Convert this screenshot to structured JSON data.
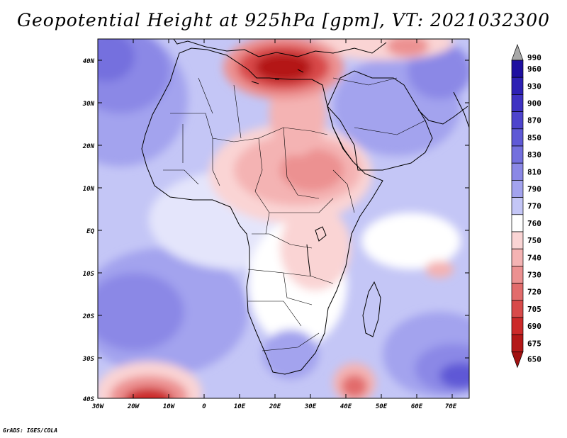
{
  "title": "Geopotential Height at 925hPa [gpm], VT: 2021032300",
  "credit": "GrADS: IGES/COLA",
  "chart_data": {
    "type": "heatmap",
    "variable": "Geopotential Height",
    "level": "925hPa",
    "units": "gpm",
    "valid_time": "2021032300",
    "lon_range": [
      -30,
      75
    ],
    "lat_range": [
      -40,
      45
    ],
    "x_ticks": [
      "30W",
      "20W",
      "10W",
      "0",
      "10E",
      "20E",
      "30E",
      "40E",
      "50E",
      "60E",
      "70E"
    ],
    "y_ticks": [
      "40N",
      "30N",
      "20N",
      "10N",
      "EQ",
      "10S",
      "20S",
      "30S",
      "40S"
    ],
    "colorbar": {
      "levels": [
        "990",
        "960",
        "930",
        "900",
        "870",
        "850",
        "830",
        "810",
        "790",
        "770",
        "760",
        "750",
        "740",
        "730",
        "720",
        "705",
        "690",
        "675",
        "650"
      ],
      "colors": [
        "#a8a8a8",
        "#1e0fa0",
        "#2e21b4",
        "#3f32c2",
        "#4e44cd",
        "#5f59d6",
        "#7470de",
        "#8b88e6",
        "#a3a3ee",
        "#c4c6f6",
        "#ffffff",
        "#fad4d4",
        "#f4b3b3",
        "#ec9191",
        "#e26c6c",
        "#d84a4a",
        "#cc2a2a",
        "#b41818",
        "#a11010"
      ]
    },
    "features": [
      {
        "name": "Low heights over Mediterranean / Greece",
        "value_approx": 705
      },
      {
        "name": "Low heights over Sudan / Central Africa",
        "value_approx": 740
      },
      {
        "name": "High heights over South Atlantic",
        "value_approx": 830
      },
      {
        "name": "High heights over Southern Indian Ocean",
        "value_approx": 850
      },
      {
        "name": "Low near 15W 40S",
        "value_approx": 705
      },
      {
        "name": "Low near 42E 38S",
        "value_approx": 720
      }
    ]
  }
}
